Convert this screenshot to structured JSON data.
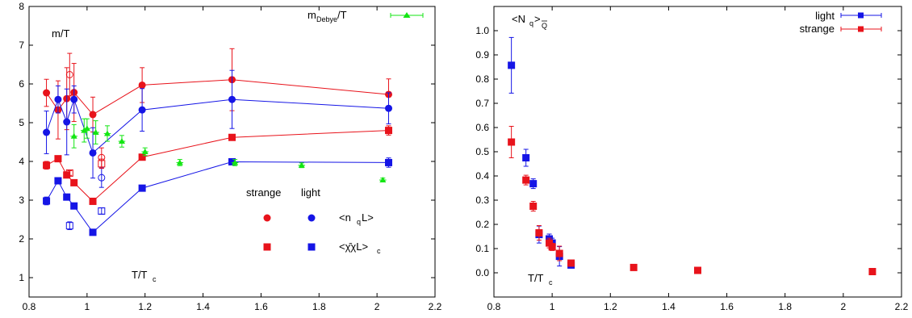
{
  "chart_data": [
    {
      "type": "scatter",
      "title": "",
      "xlim": [
        0.8,
        2.2
      ],
      "ylim": [
        0.5,
        8
      ],
      "xticks": [
        "0.8",
        "1",
        "1.2",
        "1.4",
        "1.6",
        "1.8",
        "2",
        "2.2"
      ],
      "yticks": [
        "1",
        "2",
        "3",
        "4",
        "5",
        "6",
        "7",
        "8"
      ],
      "grid": false,
      "annotations": {
        "ylabel_main": "m/T",
        "xlabel_main": "T/T",
        "xlabel_sub": "c",
        "legend_col_strange": "strange",
        "legend_col_light": "light",
        "legend_row1_main": "<n",
        "legend_row1_sub": "q",
        "legend_row1_end": "L>",
        "legend_row2_main": "<χ̄χL>",
        "legend_row2_sub": "c",
        "debye_main": "m",
        "debye_sub": "Debye",
        "debye_end": "/T"
      },
      "series": [
        {
          "key": "strange_nqL",
          "marker": "circle",
          "color": "#e8131b",
          "connected": true,
          "points": [
            [
              0.86,
              5.77,
              0.35
            ],
            [
              0.9,
              5.33,
              0.75
            ],
            [
              0.93,
              5.62,
              0.8
            ],
            [
              0.955,
              5.78,
              0.75
            ],
            [
              1.02,
              5.21,
              0.45
            ],
            [
              1.19,
              5.97,
              0.45
            ],
            [
              1.5,
              6.11,
              0.8
            ],
            [
              2.04,
              5.73,
              0.4
            ]
          ]
        },
        {
          "key": "light_nqL",
          "marker": "circle",
          "color": "#1515e6",
          "connected": true,
          "points": [
            [
              0.86,
              4.75,
              0.55
            ],
            [
              0.9,
              5.6,
              0.35
            ],
            [
              0.93,
              5.02,
              0.85
            ],
            [
              0.955,
              5.6,
              0.35
            ],
            [
              1.02,
              4.22,
              0.65
            ],
            [
              1.19,
              5.33,
              0.55
            ],
            [
              1.5,
              5.6,
              0.75
            ],
            [
              2.04,
              5.37,
              0.4
            ]
          ]
        },
        {
          "key": "strange_chi",
          "marker": "square",
          "color": "#e8131b",
          "connected": true,
          "points": [
            [
              0.86,
              3.9,
              0.1
            ],
            [
              0.9,
              4.07,
              0.06
            ],
            [
              0.93,
              3.65,
              0.06
            ],
            [
              0.955,
              3.45,
              0.06
            ],
            [
              1.02,
              2.97,
              0.06
            ],
            [
              1.19,
              4.11,
              0.06
            ],
            [
              1.5,
              4.62,
              0.06
            ],
            [
              2.04,
              4.8,
              0.12
            ]
          ]
        },
        {
          "key": "light_chi",
          "marker": "square",
          "color": "#1515e6",
          "connected": true,
          "points": [
            [
              0.86,
              2.98,
              0.1
            ],
            [
              0.9,
              3.5,
              0.06
            ],
            [
              0.93,
              3.08,
              0.06
            ],
            [
              0.955,
              2.85,
              0.06
            ],
            [
              1.02,
              2.17,
              0.06
            ],
            [
              1.19,
              3.31,
              0.06
            ],
            [
              1.5,
              3.99,
              0.06
            ],
            [
              2.04,
              3.97,
              0.12
            ]
          ]
        },
        {
          "key": "strange_nqL_open",
          "marker": "circle-open",
          "color": "#e8131b",
          "connected": false,
          "points": [
            [
              0.94,
              6.24,
              0.55
            ],
            [
              1.05,
              4.1,
              0.25
            ]
          ]
        },
        {
          "key": "light_nqL_open",
          "marker": "circle-open",
          "color": "#1515e6",
          "connected": false,
          "points": [
            [
              1.05,
              3.58,
              0.25
            ]
          ]
        },
        {
          "key": "strange_chi_open",
          "marker": "square-open",
          "color": "#e8131b",
          "connected": false,
          "points": [
            [
              0.94,
              3.7,
              0.06
            ],
            [
              1.05,
              3.94,
              0.12
            ]
          ]
        },
        {
          "key": "light_chi_open",
          "marker": "square-open",
          "color": "#1515e6",
          "connected": false,
          "points": [
            [
              0.94,
              2.34,
              0.1
            ],
            [
              1.05,
              2.72,
              0.08
            ]
          ]
        },
        {
          "key": "debye",
          "marker": "triangle",
          "color": "#13e613",
          "connected": false,
          "xerr": 0.012,
          "points": [
            [
              0.955,
              4.65,
              0.3
            ],
            [
              0.99,
              4.8,
              0.3
            ],
            [
              1.0,
              4.85,
              0.25
            ],
            [
              1.03,
              4.75,
              0.3
            ],
            [
              1.07,
              4.72,
              0.2
            ],
            [
              1.12,
              4.52,
              0.15
            ],
            [
              1.2,
              4.25,
              0.1
            ],
            [
              1.32,
              3.97,
              0.08
            ],
            [
              1.51,
              3.97,
              0.08
            ],
            [
              1.74,
              3.9,
              0.06
            ],
            [
              2.02,
              3.52,
              0.05
            ]
          ]
        }
      ]
    },
    {
      "type": "scatter",
      "title": "",
      "xlim": [
        0.8,
        2.2
      ],
      "ylim": [
        -0.1,
        1.1
      ],
      "xticks": [
        "0.8",
        "1",
        "1.2",
        "1.4",
        "1.6",
        "1.8",
        "2",
        "2.2"
      ],
      "yticks": [
        "0.0",
        "0.1",
        "0.2",
        "0.3",
        "0.4",
        "0.5",
        "0.6",
        "0.7",
        "0.8",
        "0.9",
        "1.0"
      ],
      "grid": false,
      "legend": {
        "position": "top-right",
        "entries": [
          "light",
          "strange"
        ]
      },
      "annotations": {
        "ylabel_main": "<N",
        "ylabel_sub": "q",
        "ylabel_end": ">",
        "ylabel_qbar": "Q",
        "xlabel_main": "T/T",
        "xlabel_sub": "c"
      },
      "series": [
        {
          "name": "light",
          "marker": "square",
          "color": "#1515e6",
          "points": [
            [
              0.86,
              0.857,
              0.115
            ],
            [
              0.91,
              0.475,
              0.035
            ],
            [
              0.935,
              0.368,
              0.02
            ],
            [
              0.955,
              0.158,
              0.035
            ],
            [
              0.99,
              0.14,
              0.02
            ],
            [
              1.0,
              0.123,
              0.02
            ],
            [
              1.025,
              0.068,
              0.04
            ],
            [
              1.065,
              0.032,
              0.01
            ]
          ]
        },
        {
          "name": "strange",
          "marker": "square",
          "color": "#e8131b",
          "points": [
            [
              0.86,
              0.54,
              0.065
            ],
            [
              0.91,
              0.383,
              0.02
            ],
            [
              0.935,
              0.275,
              0.02
            ],
            [
              0.955,
              0.165,
              0.03
            ],
            [
              0.99,
              0.123,
              0.02
            ],
            [
              1.0,
              0.107,
              0.015
            ],
            [
              1.025,
              0.08,
              0.03
            ],
            [
              1.065,
              0.04,
              0.01
            ],
            [
              1.28,
              0.022,
              0.005
            ],
            [
              1.5,
              0.01,
              0.004
            ],
            [
              2.1,
              0.005,
              0.002
            ]
          ]
        }
      ]
    }
  ]
}
